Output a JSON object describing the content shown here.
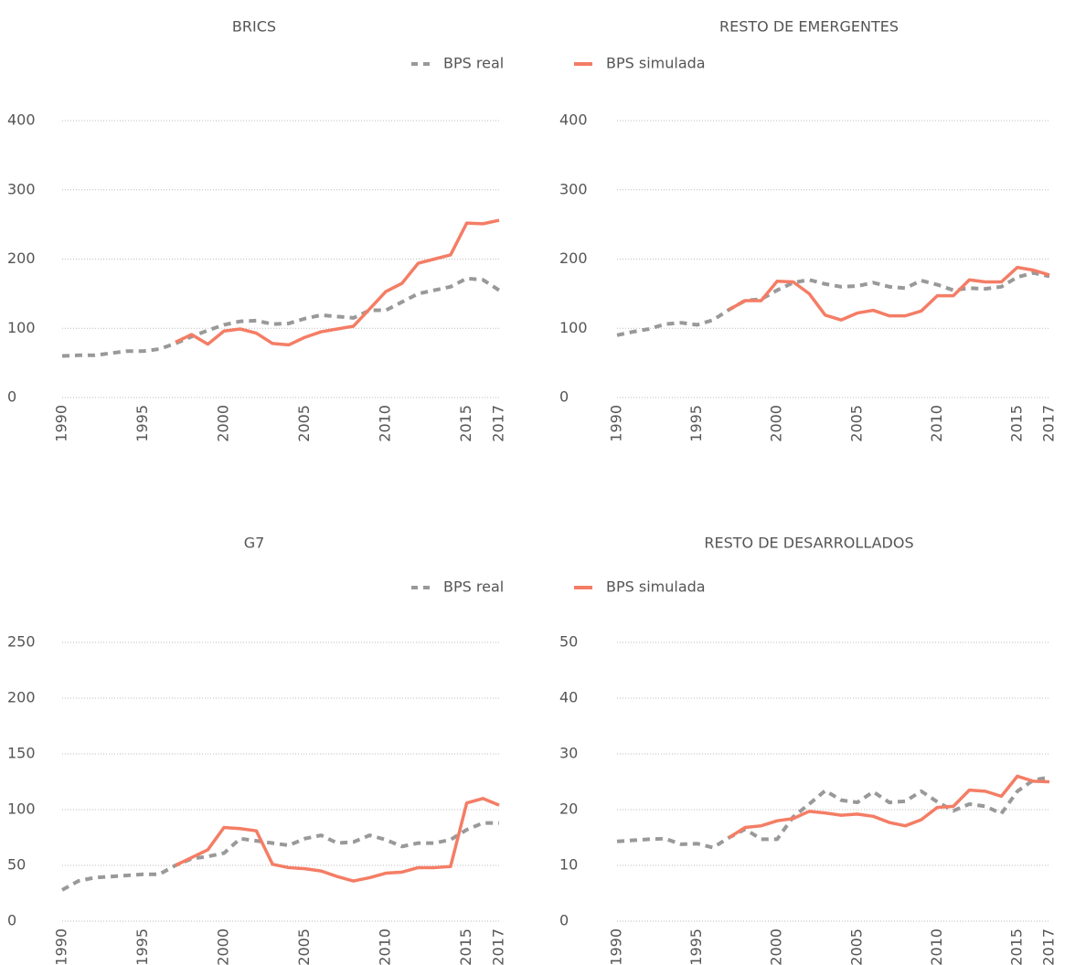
{
  "chart_data": [
    {
      "type": "line",
      "title": "BRICS",
      "legend": true,
      "x": [
        1990,
        1991,
        1992,
        1993,
        1994,
        1995,
        1996,
        1997,
        1998,
        1999,
        2000,
        2001,
        2002,
        2003,
        2004,
        2005,
        2006,
        2007,
        2008,
        2009,
        2010,
        2011,
        2012,
        2013,
        2014,
        2015,
        2016,
        2017
      ],
      "xlim": [
        1990,
        2017
      ],
      "xticks": [
        1990,
        1995,
        2000,
        2005,
        2010,
        2015,
        2017
      ],
      "ylim": [
        0,
        400
      ],
      "yticks": [
        0,
        100,
        200,
        300,
        400
      ],
      "grid": true,
      "series": [
        {
          "name": "BPS real",
          "color": "#999999",
          "linestyle": "dashed",
          "values": [
            60,
            61,
            61,
            64,
            67,
            67,
            70,
            78,
            88,
            97,
            105,
            110,
            111,
            106,
            107,
            114,
            119,
            117,
            115,
            126,
            126,
            138,
            150,
            155,
            160,
            172,
            170,
            155
          ]
        },
        {
          "name": "BPS simulada",
          "color": "#f47d65",
          "linestyle": "solid",
          "values": [
            null,
            null,
            null,
            null,
            null,
            null,
            null,
            80,
            91,
            77,
            96,
            99,
            93,
            78,
            76,
            87,
            95,
            99,
            103,
            128,
            153,
            165,
            194,
            200,
            206,
            252,
            251,
            256
          ]
        }
      ]
    },
    {
      "type": "line",
      "title": "RESTO DE EMERGENTES",
      "x": [
        1990,
        1991,
        1992,
        1993,
        1994,
        1995,
        1996,
        1997,
        1998,
        1999,
        2000,
        2001,
        2002,
        2003,
        2004,
        2005,
        2006,
        2007,
        2008,
        2009,
        2010,
        2011,
        2012,
        2013,
        2014,
        2015,
        2016,
        2017
      ],
      "xlim": [
        1990,
        2017
      ],
      "xticks": [
        1990,
        1995,
        2000,
        2005,
        2010,
        2015,
        2017
      ],
      "ylim": [
        0,
        400
      ],
      "yticks": [
        0,
        100,
        200,
        300,
        400
      ],
      "grid": true,
      "series": [
        {
          "color": "#999999",
          "linestyle": "dashed",
          "values": [
            90,
            95,
            99,
            106,
            108,
            105,
            112,
            127,
            140,
            142,
            155,
            166,
            170,
            164,
            160,
            161,
            166,
            160,
            158,
            169,
            163,
            155,
            158,
            157,
            160,
            174,
            180,
            175
          ]
        },
        {
          "color": "#f47d65",
          "linestyle": "solid",
          "values": [
            null,
            null,
            null,
            null,
            null,
            null,
            null,
            127,
            140,
            140,
            168,
            167,
            150,
            119,
            112,
            122,
            126,
            118,
            118,
            125,
            147,
            147,
            170,
            167,
            167,
            188,
            184,
            177
          ]
        }
      ]
    },
    {
      "type": "line",
      "title": "G7",
      "legend": true,
      "x": [
        1990,
        1991,
        1992,
        1993,
        1994,
        1995,
        1996,
        1997,
        1998,
        1999,
        2000,
        2001,
        2002,
        2003,
        2004,
        2005,
        2006,
        2007,
        2008,
        2009,
        2010,
        2011,
        2012,
        2013,
        2014,
        2015,
        2016,
        2017
      ],
      "xlim": [
        1990,
        2017
      ],
      "xticks": [
        1990,
        1995,
        2000,
        2005,
        2010,
        2015,
        2017
      ],
      "ylim": [
        0,
        250
      ],
      "yticks": [
        0,
        50,
        100,
        150,
        200,
        250
      ],
      "grid": true,
      "series": [
        {
          "name": "BPS real",
          "color": "#999999",
          "linestyle": "dashed",
          "values": [
            28,
            36,
            39,
            40,
            41,
            42,
            42,
            50,
            56,
            58,
            61,
            74,
            72,
            70,
            68,
            74,
            77,
            70,
            71,
            77,
            73,
            67,
            70,
            70,
            73,
            82,
            88,
            88
          ]
        },
        {
          "name": "BPS simulada",
          "color": "#f47d65",
          "linestyle": "solid",
          "values": [
            null,
            null,
            null,
            null,
            null,
            null,
            null,
            50,
            57,
            64,
            84,
            83,
            81,
            51,
            48,
            47,
            45,
            40,
            36,
            39,
            43,
            44,
            48,
            48,
            49,
            106,
            110,
            104
          ]
        }
      ]
    },
    {
      "type": "line",
      "title": "RESTO DE DESARROLLADOS",
      "x": [
        1990,
        1991,
        1992,
        1993,
        1994,
        1995,
        1996,
        1997,
        1998,
        1999,
        2000,
        2001,
        2002,
        2003,
        2004,
        2005,
        2006,
        2007,
        2008,
        2009,
        2010,
        2011,
        2012,
        2013,
        2014,
        2015,
        2016,
        2017
      ],
      "xlim": [
        1990,
        2017
      ],
      "xticks": [
        1990,
        1995,
        2000,
        2005,
        2010,
        2015,
        2017
      ],
      "ylim": [
        0,
        50
      ],
      "yticks": [
        0,
        10,
        20,
        30,
        40,
        50
      ],
      "grid": true,
      "series": [
        {
          "color": "#999999",
          "linestyle": "dashed",
          "values": [
            14.3,
            14.5,
            14.7,
            14.8,
            13.8,
            13.9,
            13.2,
            15.0,
            16.5,
            14.7,
            14.7,
            18.7,
            21,
            23.4,
            21.7,
            21.3,
            23.2,
            21.3,
            21.5,
            23.3,
            21.4,
            19.8,
            21.0,
            20.6,
            19.3,
            23.3,
            25.3,
            25.8
          ]
        },
        {
          "color": "#f47d65",
          "linestyle": "solid",
          "values": [
            null,
            null,
            null,
            null,
            null,
            null,
            null,
            15.0,
            16.8,
            17.1,
            18.0,
            18.4,
            19.7,
            19.4,
            19.0,
            19.2,
            18.8,
            17.7,
            17.1,
            18.2,
            20.4,
            20.6,
            23.5,
            23.3,
            22.4,
            26.0,
            25.1,
            25.0
          ]
        }
      ]
    }
  ]
}
